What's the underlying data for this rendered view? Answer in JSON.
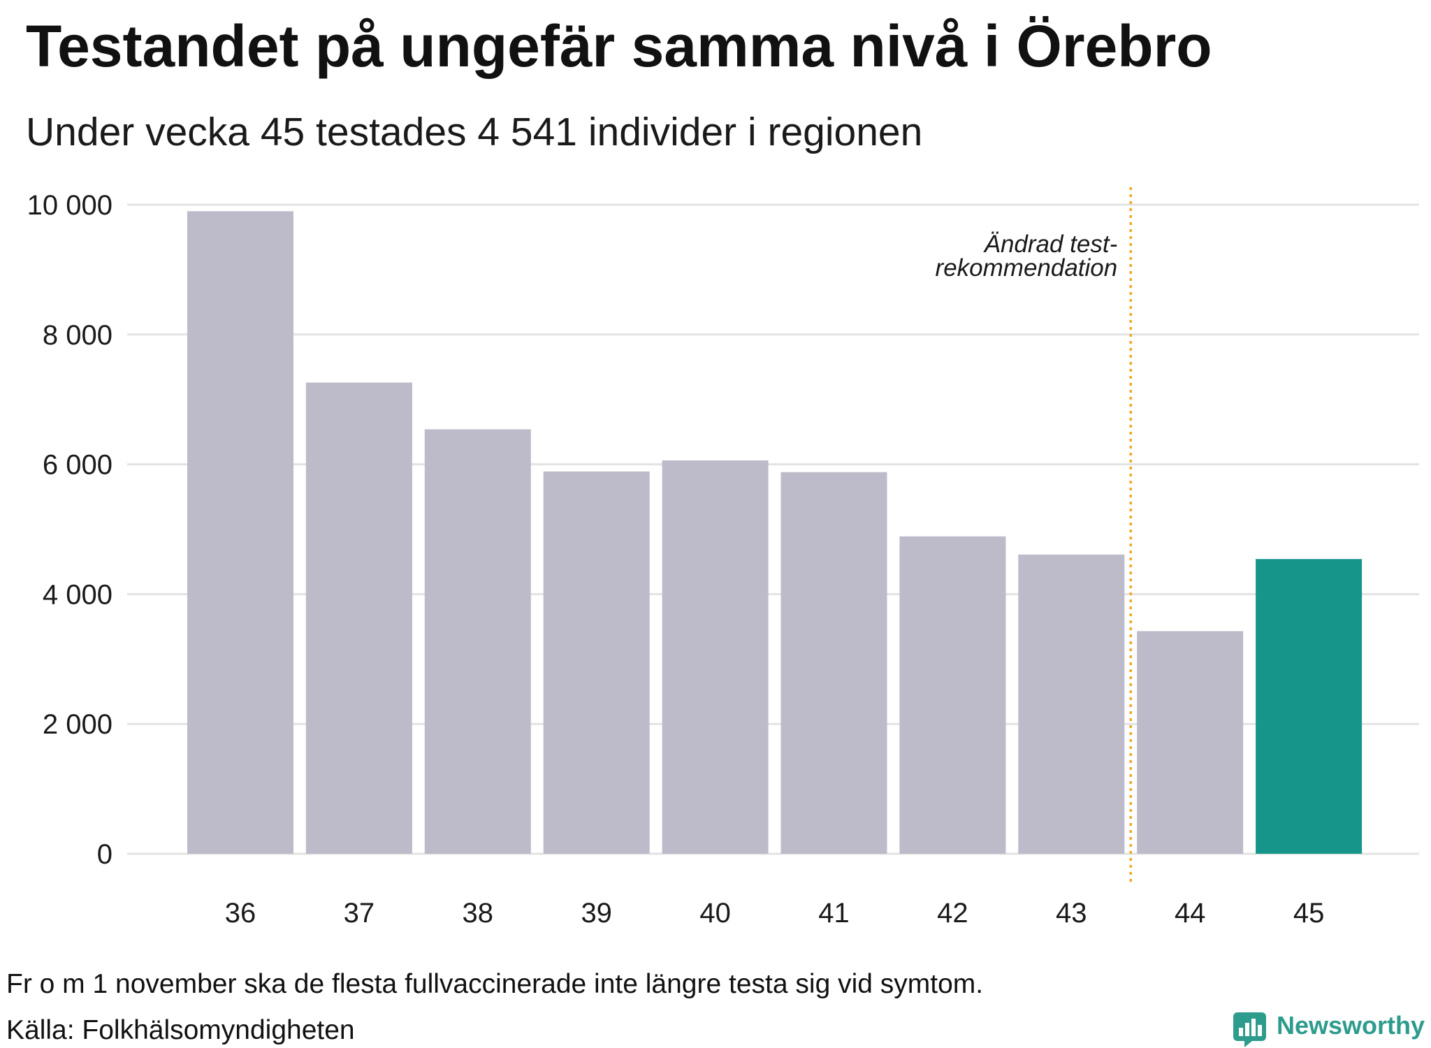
{
  "chart_data": {
    "type": "bar",
    "title": "Testandet på ungefär samma nivå i Örebro",
    "subtitle": "Under vecka 45 testades 4 541 individer i regionen",
    "categories": [
      "36",
      "37",
      "38",
      "39",
      "40",
      "41",
      "42",
      "43",
      "44",
      "45"
    ],
    "values": [
      9900,
      7260,
      6540,
      5890,
      6060,
      5880,
      4890,
      4610,
      3430,
      4541
    ],
    "highlight": "45",
    "ylim": [
      0,
      10000
    ],
    "yticks": [
      0,
      2000,
      4000,
      6000,
      8000,
      10000
    ],
    "ytick_labels": [
      "0",
      "2 000",
      "4 000",
      "6 000",
      "8 000",
      "10 000"
    ],
    "grid": true,
    "annotation": {
      "lines": [
        "Ändrad test-",
        "rekommendation"
      ],
      "after_category": "43",
      "style": "dotted vertical line"
    },
    "colors": {
      "bar": "#bdbbc9",
      "highlight": "#16958a",
      "annotation_line": "#f5a623",
      "grid": "#e3e3e3"
    }
  },
  "footer": {
    "note": "Fr o m 1 november ska de flesta fullvaccinerade inte längre testa sig vid symtom.",
    "source": "Källa: Folkhälsomyndigheten"
  },
  "logo": {
    "name": "Newsworthy",
    "icon": "speech-bubble-bar-chart-icon",
    "color": "#2e9c8d"
  }
}
